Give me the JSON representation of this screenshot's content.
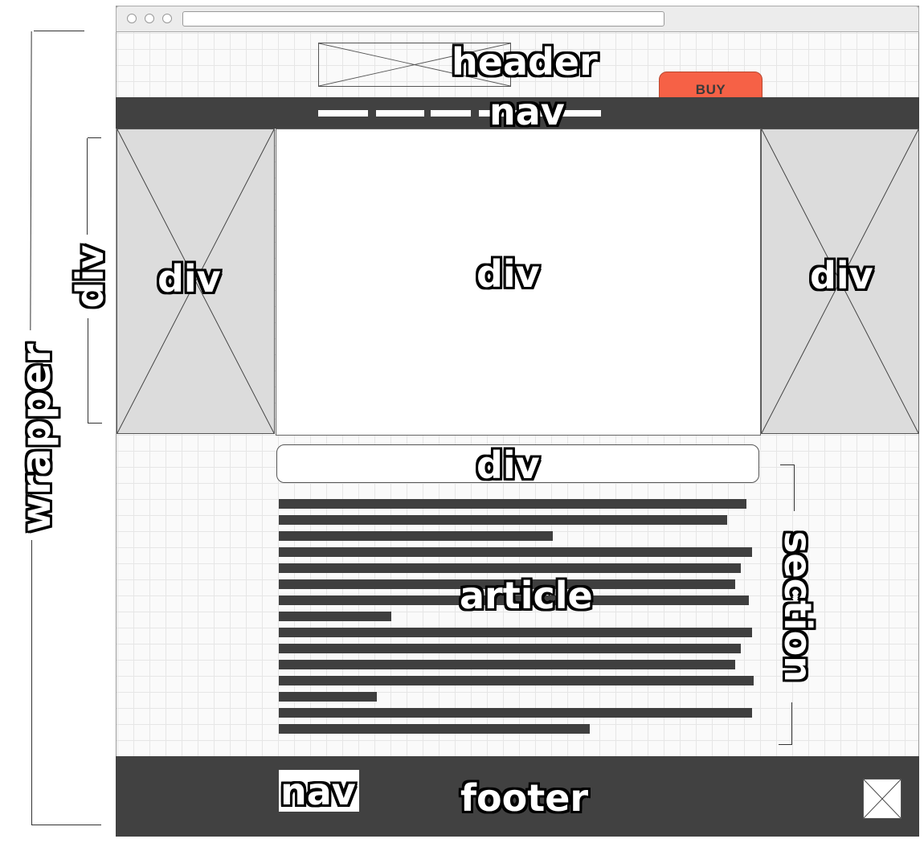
{
  "labels": {
    "header": "header",
    "nav_top": "nav",
    "wrapper": "wrapper",
    "div_side": "div",
    "div_left": "div",
    "div_center": "div",
    "div_right": "div",
    "div_bar": "div",
    "article": "article",
    "section": "section",
    "footer_nav": "nav",
    "footer": "footer"
  },
  "header": {
    "buy_label": "BUY"
  },
  "nav": {
    "links": [
      "link-1",
      "link-2",
      "link-3",
      "link-4",
      "link-5"
    ]
  },
  "article": {
    "line_count": 15
  },
  "colors": {
    "dark_bar": "#414141",
    "buy_button": "#f66146",
    "placeholder": "#dcdcdc",
    "grid": "#e6e6e6"
  }
}
